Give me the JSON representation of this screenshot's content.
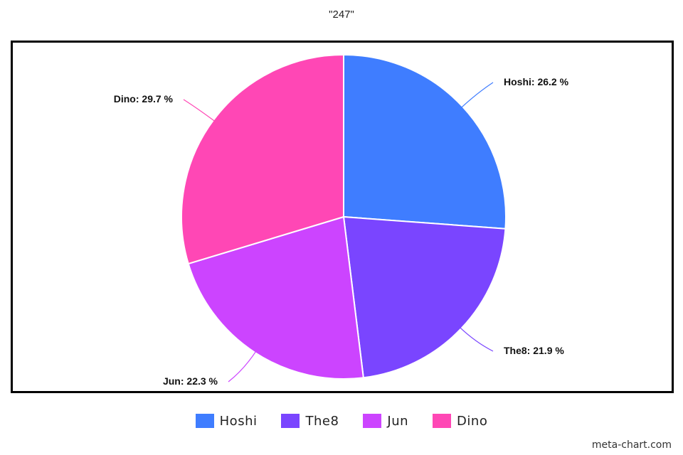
{
  "chart_data": {
    "type": "pie",
    "title": "\"247\"",
    "categories": [
      "Hoshi",
      "The8",
      "Jun",
      "Dino"
    ],
    "values": [
      26.2,
      21.9,
      22.3,
      29.7
    ],
    "labels": [
      "Hoshi: 26.2 %",
      "The8: 21.9 %",
      "Jun: 22.3 %",
      "Dino: 29.7 %"
    ],
    "colors": [
      "#3f7dff",
      "#7a45ff",
      "#cc44ff",
      "#ff47b5"
    ],
    "legend_position": "bottom"
  },
  "watermark": "meta-chart.com"
}
